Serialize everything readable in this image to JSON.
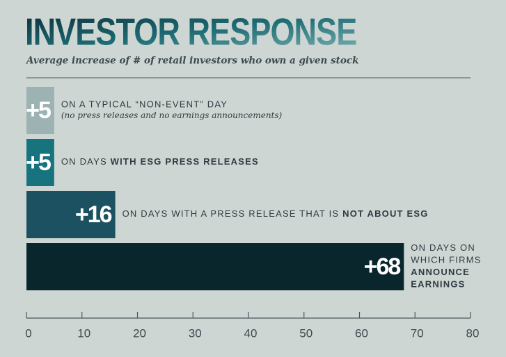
{
  "chart_data": {
    "type": "bar",
    "orientation": "horizontal",
    "title": "INVESTOR RESPONSE",
    "subtitle": "Average increase of # of retail investors who own a given stock",
    "categories": [
      [
        [
          {
            "text": "ON A TYPICAL “NON-EVENT” DAY",
            "bold": false
          }
        ]
      ],
      [
        [
          {
            "text": "ON DAYS ",
            "bold": false
          },
          {
            "text": "WITH ESG PRESS RELEASES",
            "bold": true
          }
        ]
      ],
      [
        [
          {
            "text": "ON DAYS WITH A PRESS RELEASE THAT IS ",
            "bold": false
          },
          {
            "text": "NOT ABOUT ESG",
            "bold": true
          }
        ]
      ],
      [
        [
          {
            "text": "ON DAYS ON",
            "bold": false
          }
        ],
        [
          {
            "text": "WHICH FIRMS",
            "bold": false
          }
        ],
        [
          {
            "text": "ANNOUNCE",
            "bold": true
          }
        ],
        [
          {
            "text": "EARNINGS",
            "bold": true
          }
        ]
      ]
    ],
    "notes": [
      "(no press releases and no earnings announcements)",
      null,
      null,
      null
    ],
    "values": [
      5,
      5,
      16,
      68
    ],
    "value_labels": [
      "+5",
      "+5",
      "+16",
      "+68"
    ],
    "colors": [
      "#9db2b3",
      "#17747e",
      "#1b5160",
      "#0a262d"
    ],
    "xlim": [
      0,
      80
    ],
    "xticks": [
      0,
      10,
      20,
      30,
      40,
      50,
      60,
      70,
      80
    ]
  }
}
